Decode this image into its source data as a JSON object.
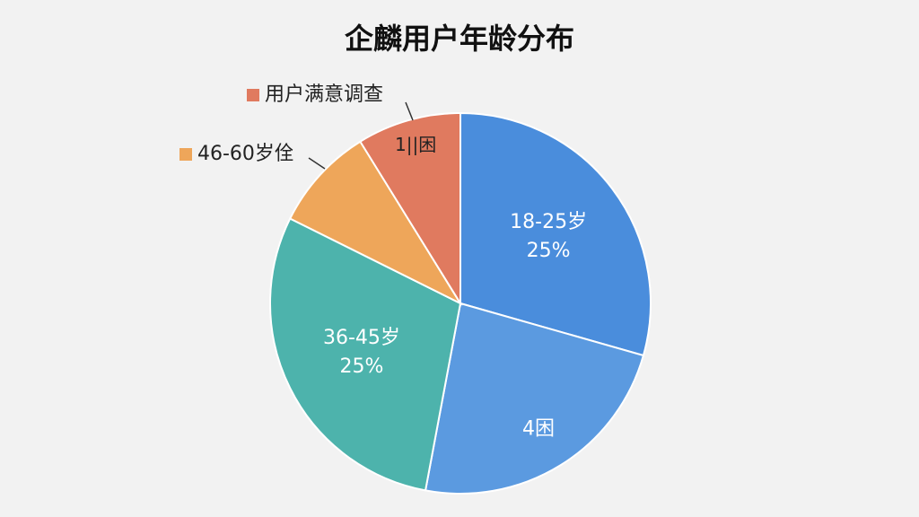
{
  "chart_data": {
    "type": "pie",
    "title": "企麟用户年龄分布",
    "categories": [
      "18-25岁",
      "4困",
      "36-45岁",
      "46-60岁佺",
      "用户满意调查"
    ],
    "values": [
      25,
      20,
      25,
      7.5,
      7.5
    ],
    "value_labels": [
      "25%",
      null,
      "25%",
      null,
      null
    ],
    "inner_labels": [
      null,
      null,
      null,
      null,
      "1||困"
    ],
    "colors": [
      "#4a8ddc",
      "#5b9ae0",
      "#4db3ac",
      "#eea65a",
      "#e07a5f"
    ]
  }
}
